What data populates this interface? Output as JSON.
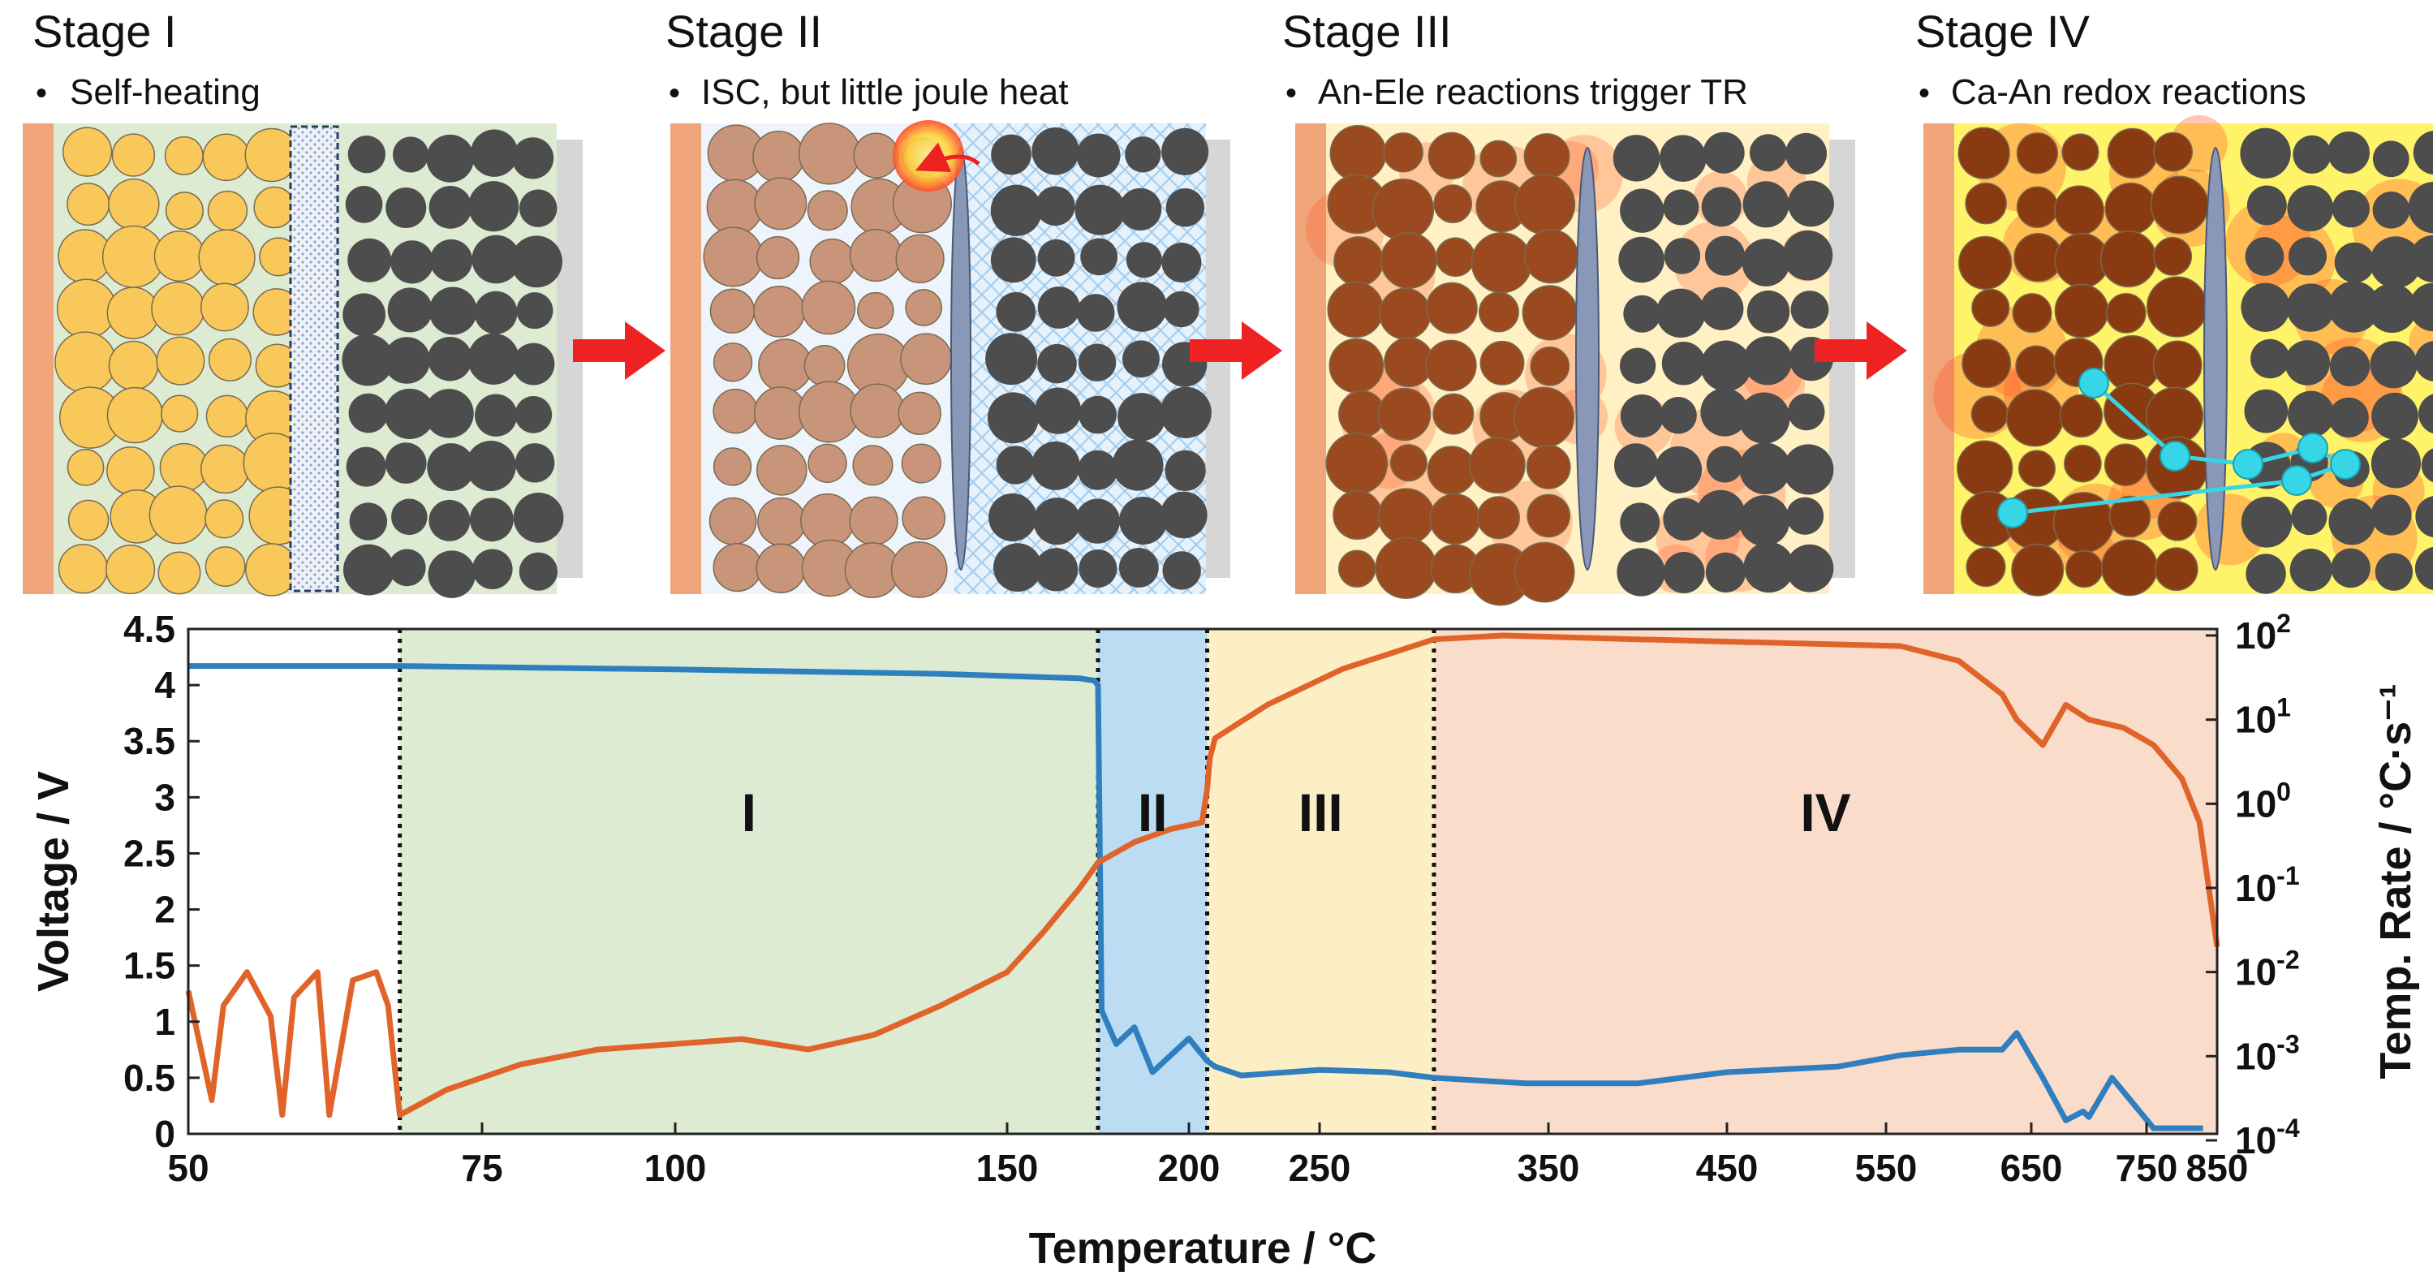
{
  "stages": [
    {
      "title": "Stage I",
      "bullet": "Self-heating"
    },
    {
      "title": "Stage II",
      "bullet": "ISC, but little joule heat"
    },
    {
      "title": "Stage III",
      "bullet": "An-Ele reactions trigger TR"
    },
    {
      "title": "Stage IV",
      "bullet": "Ca-An redox reactions"
    }
  ],
  "bullet_glyph": "•",
  "colors": {
    "voltage": "#2f7fbf",
    "temp_rate": "#e0642a",
    "region_I": "#dcebd2",
    "region_II": "#bcdcf4",
    "region_III": "#fcefc6",
    "region_IV": "#fadccb",
    "cathode_particle": "#f8c95a",
    "cathode_particle_stage2": "#c9957a",
    "anode_particle": "#4d4d4d",
    "collector_left": "#f0a47a",
    "collector_right": "#d6d6d6",
    "arrow": "#ee2222",
    "oxygen": "#37d6e6"
  },
  "chart_data": {
    "type": "line",
    "xlabel": "Temperature / °C",
    "ylabel": "Voltage / V",
    "y2label": "Temp. Rate / °C·s⁻¹",
    "x_ticks": [
      "50",
      "75",
      "100",
      "150",
      "200",
      "250",
      "350",
      "450",
      "550",
      "650",
      "750",
      "850"
    ],
    "y_ticks": [
      "0",
      "0.5",
      "1",
      "1.5",
      "2",
      "2.5",
      "3",
      "3.5",
      "4",
      "4.5"
    ],
    "ylim": [
      0,
      4.5
    ],
    "y2_scale": "log",
    "y2lim": [
      0.0001,
      100
    ],
    "y2_ticks": [
      {
        "base": "10",
        "exp": "2"
      },
      {
        "base": "10",
        "exp": "1"
      },
      {
        "base": "10",
        "exp": "0"
      },
      {
        "base": "10",
        "exp": "-1"
      },
      {
        "base": "10",
        "exp": "-2"
      },
      {
        "base": "10",
        "exp": "-3"
      },
      {
        "base": "10",
        "exp": "-4"
      }
    ],
    "stage_boundaries": [
      68,
      175,
      207,
      300
    ],
    "regions": [
      {
        "label": "I",
        "from": 68,
        "to": 175
      },
      {
        "label": "II",
        "from": 175,
        "to": 207
      },
      {
        "label": "III",
        "from": 207,
        "to": 300
      },
      {
        "label": "IV",
        "from": 300,
        "to": 850
      }
    ],
    "series": [
      {
        "axis": "left",
        "x": [
          50,
          68,
          100,
          140,
          170,
          174,
          175,
          176,
          180,
          185,
          190,
          200,
          207,
          210,
          220,
          250,
          280,
          300,
          340,
          400,
          450,
          520,
          560,
          600,
          630,
          640,
          660,
          680,
          695,
          700,
          720,
          760,
          800,
          830
        ],
        "values": [
          4.17,
          4.17,
          4.14,
          4.1,
          4.06,
          4.04,
          4.0,
          1.1,
          0.8,
          0.95,
          0.55,
          0.85,
          0.65,
          0.6,
          0.52,
          0.57,
          0.55,
          0.5,
          0.45,
          0.45,
          0.55,
          0.6,
          0.7,
          0.75,
          0.75,
          0.9,
          0.5,
          0.12,
          0.2,
          0.15,
          0.5,
          0.05,
          0.05,
          0.05
        ]
      },
      {
        "axis": "right",
        "x": [
          50,
          52,
          53,
          55,
          57,
          58,
          59,
          61,
          62,
          64,
          66,
          67,
          68,
          72,
          80,
          90,
          100,
          110,
          120,
          130,
          140,
          150,
          160,
          170,
          175,
          185,
          195,
          205,
          207,
          208,
          210,
          230,
          260,
          300,
          330,
          400,
          500,
          560,
          600,
          630,
          640,
          660,
          680,
          700,
          730,
          760,
          800,
          825,
          850
        ],
        "values": [
          0.006,
          0.0003,
          0.004,
          0.01,
          0.003,
          0.0002,
          0.005,
          0.01,
          0.0002,
          0.008,
          0.01,
          0.004,
          0.0002,
          0.0004,
          0.0008,
          0.0012,
          0.0014,
          0.0016,
          0.0012,
          0.0018,
          0.004,
          0.01,
          0.03,
          0.1,
          0.2,
          0.35,
          0.5,
          0.6,
          1.5,
          3.5,
          6,
          15,
          40,
          90,
          100,
          90,
          80,
          75,
          50,
          20,
          10,
          5,
          15,
          10,
          8,
          5,
          2,
          0.6,
          0.02
        ]
      }
    ]
  }
}
